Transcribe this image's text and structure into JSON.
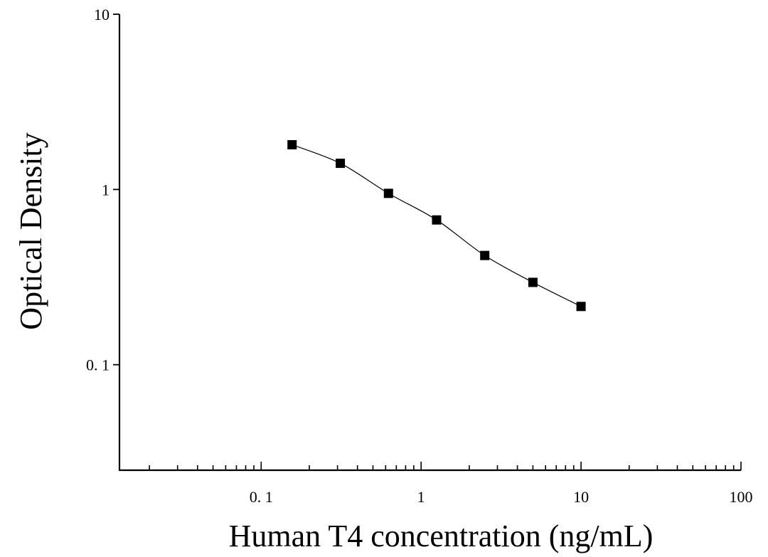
{
  "chart_data": {
    "type": "scatter",
    "xlabel": "Human T4 concentration (ng/mL)",
    "ylabel": "Optical Density",
    "x_scale": "log",
    "y_scale": "log",
    "xlim": [
      0.013,
      100
    ],
    "ylim": [
      0.025,
      10
    ],
    "x_tick_labels": [
      {
        "value": 0.1,
        "label": "0. 1"
      },
      {
        "value": 1,
        "label": "1"
      },
      {
        "value": 10,
        "label": "10"
      },
      {
        "value": 100,
        "label": "100"
      }
    ],
    "y_tick_labels": [
      {
        "value": 10,
        "label": "10"
      },
      {
        "value": 1,
        "label": "1"
      },
      {
        "value": 0.1,
        "label": "0. 1"
      }
    ],
    "grid": false,
    "series": [
      {
        "marker": "square",
        "color": "#000000",
        "x": [
          0.156,
          0.3125,
          0.625,
          1.25,
          2.5,
          5,
          10
        ],
        "y": [
          1.8,
          1.41,
          0.95,
          0.67,
          0.42,
          0.295,
          0.215
        ],
        "fit_line": true
      }
    ]
  }
}
